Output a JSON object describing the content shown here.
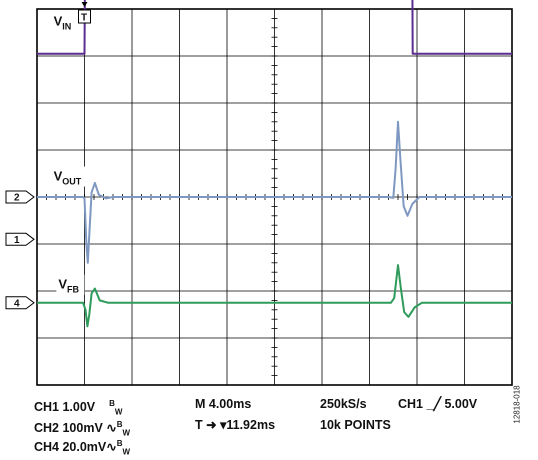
{
  "chart_data": {
    "type": "line",
    "title": "",
    "grid": true,
    "divisions": {
      "x": 10,
      "y": 8
    },
    "xlim": [
      0,
      10
    ],
    "ylim": [
      0,
      8
    ],
    "series": [
      {
        "name": "V_IN",
        "color": "#5b2d8e",
        "points": [
          [
            0,
            7.05
          ],
          [
            1.0,
            7.05
          ],
          [
            1.01,
            8.75
          ],
          [
            7.9,
            8.75
          ],
          [
            7.91,
            7.05
          ],
          [
            10,
            7.05
          ]
        ]
      },
      {
        "name": "V_OUT",
        "color": "#7f98c2",
        "points": [
          [
            0,
            4.0
          ],
          [
            0.97,
            4.0
          ],
          [
            1.0,
            3.97
          ],
          [
            1.04,
            3.0
          ],
          [
            1.07,
            2.6
          ],
          [
            1.1,
            3.2
          ],
          [
            1.15,
            4.1
          ],
          [
            1.22,
            4.3
          ],
          [
            1.3,
            4.05
          ],
          [
            1.45,
            3.97
          ],
          [
            1.6,
            4.0
          ],
          [
            7.4,
            4.0
          ],
          [
            7.5,
            3.98
          ],
          [
            7.55,
            4.6
          ],
          [
            7.6,
            5.6
          ],
          [
            7.65,
            4.8
          ],
          [
            7.72,
            3.8
          ],
          [
            7.8,
            3.6
          ],
          [
            7.9,
            3.85
          ],
          [
            8.05,
            4.0
          ],
          [
            10,
            4.0
          ]
        ]
      },
      {
        "name": "V_FB",
        "color": "#2e9b5b",
        "points": [
          [
            0,
            1.75
          ],
          [
            0.97,
            1.75
          ],
          [
            1.02,
            1.6
          ],
          [
            1.06,
            1.25
          ],
          [
            1.1,
            1.5
          ],
          [
            1.15,
            1.95
          ],
          [
            1.22,
            2.05
          ],
          [
            1.32,
            1.8
          ],
          [
            1.5,
            1.75
          ],
          [
            7.45,
            1.75
          ],
          [
            7.52,
            1.85
          ],
          [
            7.6,
            2.55
          ],
          [
            7.66,
            2.05
          ],
          [
            7.73,
            1.55
          ],
          [
            7.82,
            1.45
          ],
          [
            7.95,
            1.65
          ],
          [
            8.1,
            1.75
          ],
          [
            10,
            1.75
          ]
        ]
      }
    ],
    "trace_labels": [
      {
        "text": "V",
        "sub": "IN",
        "x": 0.35,
        "y": 7.65
      },
      {
        "text": "V",
        "sub": "OUT",
        "x": 0.35,
        "y": 4.35
      },
      {
        "text": "V",
        "sub": "FB",
        "x": 0.45,
        "y": 2.05
      }
    ],
    "channel_markers": [
      {
        "label": "2",
        "y": 4.0
      },
      {
        "label": "1",
        "y": 3.1
      },
      {
        "label": "4",
        "y": 1.75
      }
    ],
    "trigger": {
      "label": "T",
      "x": 1.0
    },
    "status_lines": {
      "ch1_scale": "CH1 1.00V",
      "ch1_bw": "B",
      "ch1_bw_sub": "W",
      "ch2_scale": "CH2  100mV",
      "ch2_ac": "∿",
      "ch2_bw": "B",
      "ch2_bw_sub": "W",
      "ch4_scale": "CH4  20.0mV",
      "ch4_ac": "∿",
      "ch4_bw": "B",
      "ch4_bw_sub": "W",
      "timebase": "M 4.00ms",
      "trigger_pos": "T",
      "trigger_pos_arrow": "➜ ▾",
      "trigger_pos_value": "11.92ms",
      "sample_rate": "250kS/s",
      "points": "10k POINTS",
      "trigger_ch": "CH1",
      "trigger_slope": "_╱",
      "trigger_level": "5.00V"
    },
    "figure_code": "12818-018"
  }
}
